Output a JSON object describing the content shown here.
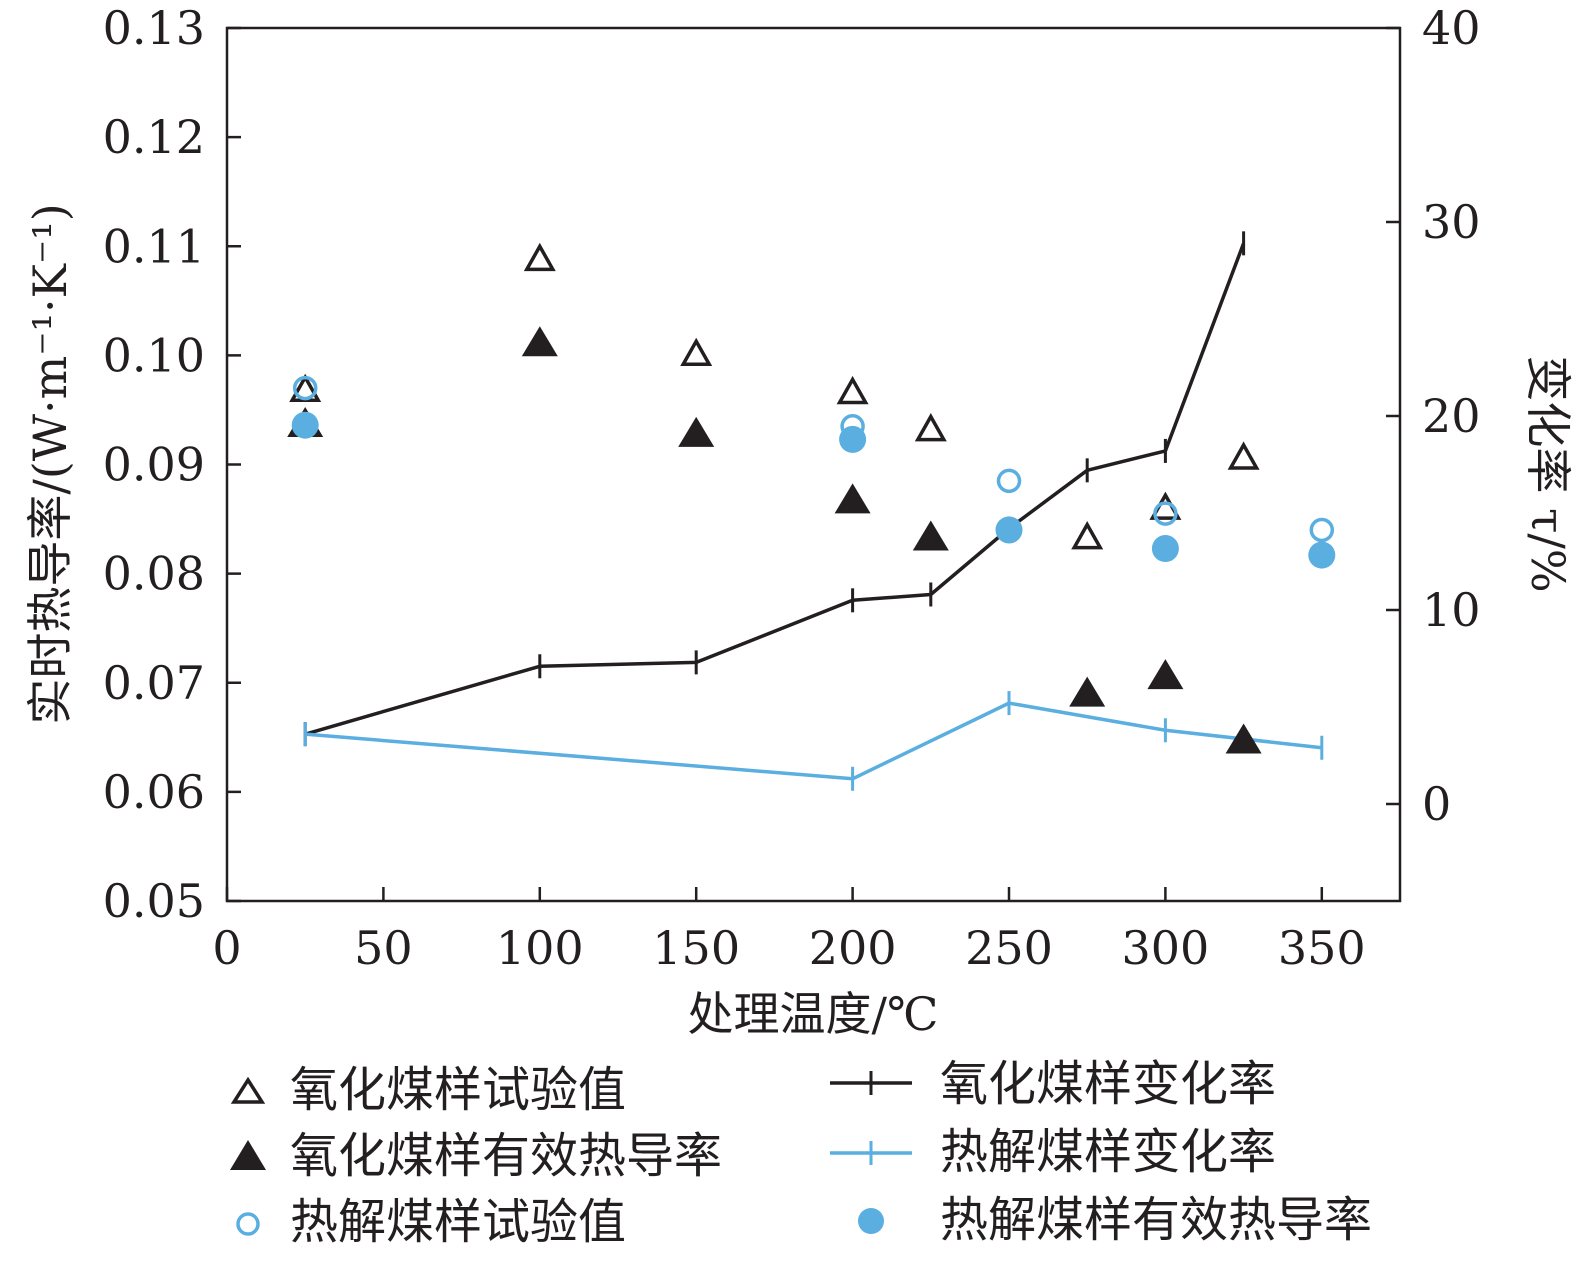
{
  "chart_data": {
    "type": "scatter",
    "title": "",
    "xlabel": "处理温度/℃",
    "ylabel_left": "实时热导率/(W·m⁻¹·K⁻¹)",
    "ylabel_right": "变化率 τ/%",
    "xlim": [
      0,
      375
    ],
    "ylim_left": [
      0.05,
      0.13
    ],
    "ylim_right": [
      -5,
      40
    ],
    "x_ticks": [
      "0",
      "50",
      "100",
      "150",
      "200",
      "250",
      "300",
      "350"
    ],
    "y_left_ticks": [
      "0.05",
      "0.06",
      "0.07",
      "0.08",
      "0.09",
      "0.10",
      "0.11",
      "0.12",
      "0.13"
    ],
    "y_right_ticks": [
      "0",
      "10",
      "20",
      "30",
      "40"
    ],
    "grid": false,
    "legend_position": "bottom",
    "series": [
      {
        "name": "氧化煤样试验值",
        "kind": "scatter",
        "axis": "left",
        "marker": "triangle-open",
        "color": "#231f20",
        "x": [
          25,
          100,
          150,
          200,
          225,
          275,
          300,
          325
        ],
        "y": [
          0.0968,
          0.1088,
          0.1001,
          0.0966,
          0.0932,
          0.0833,
          0.086,
          0.0906
        ]
      },
      {
        "name": "氧化煤样有效热导率",
        "kind": "scatter",
        "axis": "left",
        "marker": "triangle-filled",
        "color": "#231f20",
        "x": [
          25,
          100,
          150,
          200,
          225,
          275,
          300,
          325
        ],
        "y": [
          0.0938,
          0.1012,
          0.0929,
          0.0868,
          0.0834,
          0.0691,
          0.0707,
          0.0648
        ]
      },
      {
        "name": "热解煤样试验值",
        "kind": "scatter",
        "axis": "left",
        "marker": "circle-open",
        "color": "#5aaee0",
        "x": [
          25,
          200,
          250,
          300,
          350
        ],
        "y": [
          0.097,
          0.0935,
          0.0885,
          0.0855,
          0.084
        ]
      },
      {
        "name": "热解煤样有效热导率",
        "kind": "scatter",
        "axis": "left",
        "marker": "circle-filled",
        "color": "#5aaee0",
        "x": [
          25,
          200,
          250,
          300,
          350
        ],
        "y": [
          0.0936,
          0.0923,
          0.084,
          0.0823,
          0.0817
        ]
      },
      {
        "name": "氧化煤样变化率",
        "kind": "line",
        "axis": "right",
        "marker": "plus",
        "color": "#231f20",
        "x": [
          25,
          100,
          150,
          200,
          225,
          250,
          275,
          300,
          325
        ],
        "y": [
          3.6,
          7.1,
          7.3,
          10.5,
          10.8,
          14.2,
          17.2,
          18.2,
          28.9
        ]
      },
      {
        "name": "热解煤样变化率",
        "kind": "line",
        "axis": "right",
        "marker": "plus",
        "color": "#5aaee0",
        "x": [
          25,
          200,
          250,
          300,
          350
        ],
        "y": [
          3.6,
          1.3,
          5.2,
          3.8,
          2.9
        ]
      }
    ]
  }
}
